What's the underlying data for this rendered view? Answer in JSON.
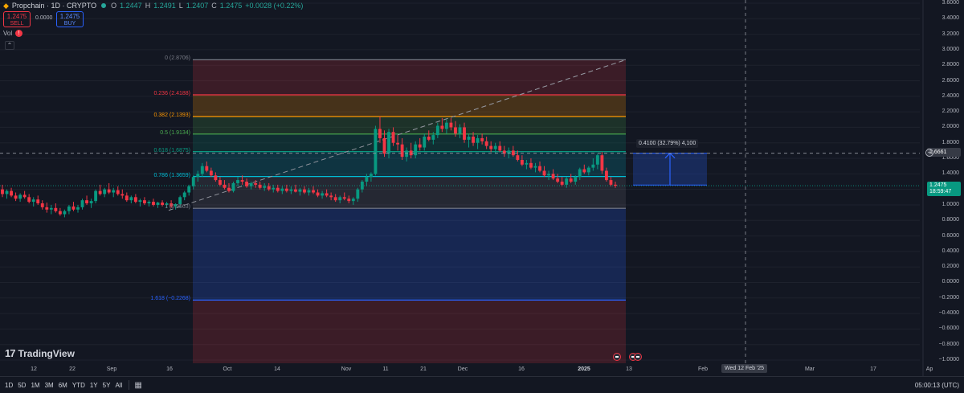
{
  "header": {
    "symbol": "Propchain · 1D · CRYPTO",
    "o_label": "O",
    "o_value": "1.2447",
    "h_label": "H",
    "h_value": "1.2491",
    "l_label": "L",
    "l_value": "1.2407",
    "c_label": "C",
    "c_value": "1.2475",
    "change": "+0.0028 (+0.22%)"
  },
  "trade": {
    "sell_price": "1.2475",
    "sell_label": "SELL",
    "spread": "0.0000",
    "buy_price": "1.2475",
    "buy_label": "BUY"
  },
  "volume": {
    "label": "Vol",
    "warn": "!"
  },
  "collapse_icon": "⌃",
  "logo": {
    "mark": "17",
    "text": "TradingView"
  },
  "fib_levels": [
    {
      "label": "0 (2.8706)",
      "price": 2.8706,
      "color": "#787b86"
    },
    {
      "label": "0.236 (2.4188)",
      "price": 2.4188,
      "color": "#f23645"
    },
    {
      "label": "0.382 (2.1393)",
      "price": 2.1393,
      "color": "#ff9800"
    },
    {
      "label": "0.5 (1.9134)",
      "price": 1.9134,
      "color": "#4caf50"
    },
    {
      "label": "0.618 (1.6875)",
      "price": 1.6875,
      "color": "#089981"
    },
    {
      "label": "0.786 (1.3659)",
      "price": 1.3659,
      "color": "#00bcd4"
    },
    {
      "label": "1 (0.9563)",
      "price": 0.9563,
      "color": "#787b86"
    },
    {
      "label": "1.618 (−0.2268)",
      "price": -0.2268,
      "color": "#2962ff"
    }
  ],
  "y_axis": [
    "3.6000",
    "3.4000",
    "3.2000",
    "3.0000",
    "2.8000",
    "2.6000",
    "2.4000",
    "2.2000",
    "2.0000",
    "1.8000",
    "1.6000",
    "1.4000",
    "1.2000",
    "1.0000",
    "0.8000",
    "0.6000",
    "0.4000",
    "0.2000",
    "0.0000",
    "−0.2000",
    "−0.4000",
    "−0.6000",
    "−0.8000",
    "−1.0000"
  ],
  "current_price": {
    "value": "1.2475",
    "countdown": "18:59:47",
    "color": "#089981"
  },
  "crosshair_price": {
    "value": "1.6661"
  },
  "measure": {
    "label": "0.4100 (32.79%) 4,100",
    "from": 1.2561,
    "to": 1.6661
  },
  "x_axis": [
    {
      "label": "12",
      "bold": false
    },
    {
      "label": "22",
      "bold": false
    },
    {
      "label": "Sep",
      "bold": false
    },
    {
      "label": "16",
      "bold": false
    },
    {
      "label": "Oct",
      "bold": false
    },
    {
      "label": "14",
      "bold": false
    },
    {
      "label": "Nov",
      "bold": false
    },
    {
      "label": "11",
      "bold": false
    },
    {
      "label": "21",
      "bold": false
    },
    {
      "label": "Dec",
      "bold": false
    },
    {
      "label": "16",
      "bold": false
    },
    {
      "label": "2025",
      "bold": true
    },
    {
      "label": "13",
      "bold": false
    },
    {
      "label": "Feb",
      "bold": false
    },
    {
      "label": "Mar",
      "bold": false
    },
    {
      "label": "17",
      "bold": false
    },
    {
      "label": "Ap",
      "bold": false
    }
  ],
  "crosshair_date": "Wed 12 Feb '25",
  "timeframes": [
    "1D",
    "5D",
    "1M",
    "3M",
    "6M",
    "YTD",
    "1Y",
    "5Y",
    "All"
  ],
  "clock": "05:00:13 (UTC)",
  "chart_data": {
    "type": "candlestick",
    "title": "Propchain · 1D · CRYPTO",
    "ylim": [
      -1.05,
      3.65
    ],
    "candles": [
      [
        1.2,
        1.26,
        1.1,
        1.14
      ],
      [
        1.14,
        1.2,
        1.08,
        1.18
      ],
      [
        1.18,
        1.22,
        1.1,
        1.12
      ],
      [
        1.12,
        1.16,
        1.05,
        1.08
      ],
      [
        1.08,
        1.15,
        1.04,
        1.13
      ],
      [
        1.13,
        1.18,
        1.08,
        1.1
      ],
      [
        1.1,
        1.14,
        1.02,
        1.04
      ],
      [
        1.04,
        1.1,
        0.98,
        1.07
      ],
      [
        1.07,
        1.12,
        1.0,
        1.02
      ],
      [
        1.02,
        1.06,
        0.94,
        0.97
      ],
      [
        0.97,
        1.03,
        0.9,
        0.94
      ],
      [
        0.94,
        1.0,
        0.88,
        0.96
      ],
      [
        0.96,
        1.02,
        0.9,
        0.92
      ],
      [
        0.92,
        0.96,
        0.86,
        0.88
      ],
      [
        0.88,
        0.94,
        0.84,
        0.92
      ],
      [
        0.92,
        1.0,
        0.88,
        0.98
      ],
      [
        0.98,
        1.04,
        0.92,
        0.94
      ],
      [
        0.94,
        1.0,
        0.9,
        0.97
      ],
      [
        0.97,
        1.08,
        0.94,
        1.06
      ],
      [
        1.06,
        1.12,
        1.0,
        1.02
      ],
      [
        1.02,
        1.08,
        0.96,
        1.05
      ],
      [
        1.05,
        1.2,
        1.02,
        1.18
      ],
      [
        1.18,
        1.26,
        1.12,
        1.14
      ],
      [
        1.14,
        1.22,
        1.1,
        1.2
      ],
      [
        1.2,
        1.28,
        1.14,
        1.16
      ],
      [
        1.16,
        1.22,
        1.1,
        1.19
      ],
      [
        1.19,
        1.24,
        1.12,
        1.14
      ],
      [
        1.14,
        1.2,
        1.08,
        1.12
      ],
      [
        1.12,
        1.16,
        1.04,
        1.06
      ],
      [
        1.06,
        1.12,
        1.02,
        1.1
      ],
      [
        1.1,
        1.14,
        1.02,
        1.04
      ],
      [
        1.04,
        1.08,
        0.98,
        1.06
      ],
      [
        1.06,
        1.1,
        1.0,
        1.02
      ],
      [
        1.02,
        1.06,
        0.98,
        1.04
      ],
      [
        1.04,
        1.08,
        0.98,
        1.0
      ],
      [
        1.0,
        1.04,
        0.96,
        1.03
      ],
      [
        1.03,
        1.06,
        0.98,
        1.0
      ],
      [
        1.0,
        1.04,
        0.96,
        1.02
      ],
      [
        1.02,
        1.06,
        0.96,
        0.98
      ],
      [
        0.98,
        1.02,
        0.94,
        1.01
      ],
      [
        1.01,
        1.12,
        0.98,
        1.1
      ],
      [
        1.1,
        1.18,
        1.06,
        1.16
      ],
      [
        1.16,
        1.26,
        1.12,
        1.24
      ],
      [
        1.24,
        1.38,
        1.2,
        1.36
      ],
      [
        1.36,
        1.44,
        1.3,
        1.4
      ],
      [
        1.4,
        1.54,
        1.36,
        1.5
      ],
      [
        1.5,
        1.56,
        1.42,
        1.44
      ],
      [
        1.44,
        1.48,
        1.36,
        1.38
      ],
      [
        1.38,
        1.42,
        1.3,
        1.32
      ],
      [
        1.32,
        1.36,
        1.24,
        1.26
      ],
      [
        1.26,
        1.32,
        1.2,
        1.22
      ],
      [
        1.22,
        1.28,
        1.16,
        1.18
      ],
      [
        1.18,
        1.3,
        1.16,
        1.28
      ],
      [
        1.28,
        1.36,
        1.24,
        1.32
      ],
      [
        1.32,
        1.38,
        1.26,
        1.3
      ],
      [
        1.3,
        1.34,
        1.22,
        1.24
      ],
      [
        1.24,
        1.3,
        1.2,
        1.28
      ],
      [
        1.28,
        1.32,
        1.22,
        1.26
      ],
      [
        1.26,
        1.3,
        1.2,
        1.22
      ],
      [
        1.22,
        1.28,
        1.18,
        1.24
      ],
      [
        1.24,
        1.28,
        1.18,
        1.2
      ],
      [
        1.2,
        1.26,
        1.16,
        1.22
      ],
      [
        1.22,
        1.26,
        1.16,
        1.18
      ],
      [
        1.18,
        1.24,
        1.14,
        1.21
      ],
      [
        1.21,
        1.26,
        1.16,
        1.18
      ],
      [
        1.18,
        1.24,
        1.14,
        1.2
      ],
      [
        1.2,
        1.26,
        1.16,
        1.17
      ],
      [
        1.17,
        1.22,
        1.12,
        1.2
      ],
      [
        1.2,
        1.24,
        1.14,
        1.16
      ],
      [
        1.16,
        1.22,
        1.12,
        1.19
      ],
      [
        1.19,
        1.24,
        1.14,
        1.16
      ],
      [
        1.16,
        1.2,
        1.1,
        1.12
      ],
      [
        1.12,
        1.18,
        1.08,
        1.15
      ],
      [
        1.15,
        1.2,
        1.1,
        1.12
      ],
      [
        1.12,
        1.16,
        1.06,
        1.1
      ],
      [
        1.1,
        1.14,
        1.04,
        1.06
      ],
      [
        1.06,
        1.12,
        1.02,
        1.1
      ],
      [
        1.1,
        1.16,
        1.06,
        1.08
      ],
      [
        1.08,
        1.12,
        1.02,
        1.05
      ],
      [
        1.05,
        1.1,
        1.0,
        1.08
      ],
      [
        1.08,
        1.22,
        1.04,
        1.2
      ],
      [
        1.2,
        1.32,
        1.16,
        1.3
      ],
      [
        1.3,
        1.4,
        1.24,
        1.36
      ],
      [
        1.36,
        1.42,
        1.3,
        1.4
      ],
      [
        1.4,
        2.02,
        1.38,
        1.98
      ],
      [
        1.98,
        2.14,
        1.8,
        1.86
      ],
      [
        1.86,
        1.96,
        1.62,
        1.66
      ],
      [
        1.66,
        1.98,
        1.6,
        1.94
      ],
      [
        1.94,
        2.0,
        1.76,
        1.8
      ],
      [
        1.8,
        1.9,
        1.7,
        1.78
      ],
      [
        1.78,
        1.86,
        1.58,
        1.62
      ],
      [
        1.62,
        1.74,
        1.56,
        1.7
      ],
      [
        1.7,
        1.8,
        1.6,
        1.64
      ],
      [
        1.64,
        1.82,
        1.6,
        1.78
      ],
      [
        1.78,
        1.86,
        1.7,
        1.74
      ],
      [
        1.74,
        1.92,
        1.7,
        1.88
      ],
      [
        1.88,
        1.96,
        1.82,
        1.84
      ],
      [
        1.84,
        1.94,
        1.78,
        1.9
      ],
      [
        1.9,
        2.06,
        1.86,
        2.02
      ],
      [
        2.02,
        2.12,
        1.94,
        1.98
      ],
      [
        1.98,
        2.1,
        1.92,
        2.06
      ],
      [
        2.06,
        2.12,
        1.96,
        2.0
      ],
      [
        2.0,
        2.08,
        1.88,
        1.92
      ],
      [
        1.92,
        2.04,
        1.86,
        2.0
      ],
      [
        2.0,
        2.06,
        1.8,
        1.84
      ],
      [
        1.84,
        1.92,
        1.74,
        1.88
      ],
      [
        1.88,
        1.94,
        1.76,
        1.8
      ],
      [
        1.8,
        1.9,
        1.72,
        1.86
      ],
      [
        1.86,
        1.92,
        1.78,
        1.82
      ],
      [
        1.82,
        1.88,
        1.72,
        1.76
      ],
      [
        1.76,
        1.82,
        1.68,
        1.72
      ],
      [
        1.72,
        1.8,
        1.66,
        1.76
      ],
      [
        1.76,
        1.82,
        1.68,
        1.7
      ],
      [
        1.7,
        1.76,
        1.62,
        1.66
      ],
      [
        1.66,
        1.74,
        1.6,
        1.7
      ],
      [
        1.7,
        1.76,
        1.62,
        1.64
      ],
      [
        1.64,
        1.7,
        1.56,
        1.58
      ],
      [
        1.58,
        1.64,
        1.5,
        1.52
      ],
      [
        1.52,
        1.58,
        1.46,
        1.54
      ],
      [
        1.54,
        1.6,
        1.46,
        1.48
      ],
      [
        1.48,
        1.54,
        1.42,
        1.5
      ],
      [
        1.5,
        1.56,
        1.42,
        1.44
      ],
      [
        1.44,
        1.5,
        1.36,
        1.38
      ],
      [
        1.38,
        1.44,
        1.32,
        1.4
      ],
      [
        1.4,
        1.46,
        1.32,
        1.34
      ],
      [
        1.34,
        1.4,
        1.28,
        1.3
      ],
      [
        1.3,
        1.36,
        1.24,
        1.26
      ],
      [
        1.26,
        1.36,
        1.22,
        1.34
      ],
      [
        1.34,
        1.4,
        1.28,
        1.3
      ],
      [
        1.3,
        1.38,
        1.26,
        1.36
      ],
      [
        1.36,
        1.48,
        1.32,
        1.46
      ],
      [
        1.46,
        1.52,
        1.4,
        1.42
      ],
      [
        1.42,
        1.5,
        1.38,
        1.48
      ],
      [
        1.48,
        1.6,
        1.44,
        1.52
      ],
      [
        1.52,
        1.66,
        1.46,
        1.64
      ],
      [
        1.64,
        1.68,
        1.4,
        1.44
      ],
      [
        1.44,
        1.48,
        1.3,
        1.32
      ],
      [
        1.32,
        1.36,
        1.24,
        1.26
      ],
      [
        1.26,
        1.3,
        1.22,
        1.2475
      ]
    ],
    "bull_color": "#089981",
    "bear_color": "#f23645"
  }
}
